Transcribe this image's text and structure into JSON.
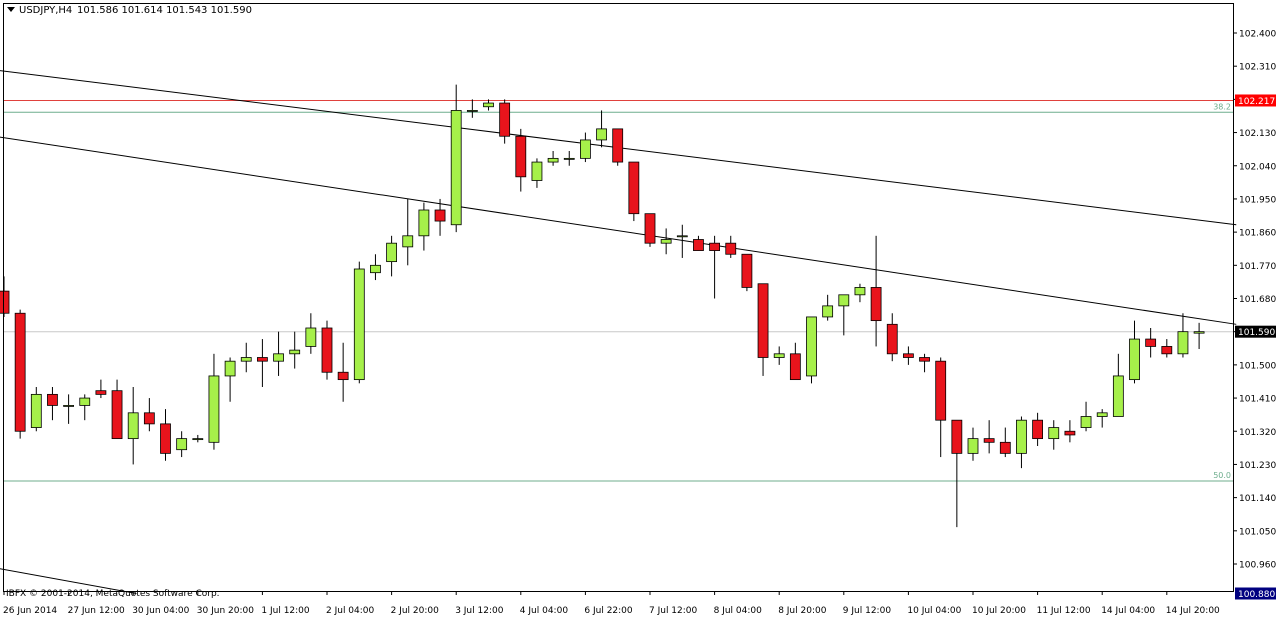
{
  "header": {
    "symbol_label": "USDJPY,H4",
    "ohlc_label": "101.586 101.614 101.543 101.590",
    "dropdown_icon": "triangle-down-icon"
  },
  "copyright": "IBFX © 2001-2014, MetaQuotes Software Corp.",
  "colors": {
    "background": "#ffffff",
    "frame": "#000000",
    "up_candle": "#a6f04a",
    "down_candle": "#e8141c",
    "wick": "#000000",
    "grid": "#c8c8c8",
    "resistance_line": "#e0413d",
    "fib_line": "#6fae8e",
    "price_tag_red": "#ff0000",
    "price_tag_current": "#000000",
    "price_tag_blue": "#000080"
  },
  "chart_data": {
    "type": "candlestick",
    "symbol": "USDJPY",
    "timeframe": "H4",
    "y_axis": {
      "ticks": [
        "102.400",
        "102.310",
        "102.220",
        "102.130",
        "102.040",
        "101.950",
        "101.860",
        "101.770",
        "101.680",
        "101.590",
        "101.500",
        "101.410",
        "101.320",
        "101.230",
        "101.140",
        "101.050",
        "100.960"
      ],
      "range": [
        100.88,
        102.46
      ]
    },
    "x_axis": {
      "labels": [
        "26 Jun 2014",
        "27 Jun 12:00",
        "30 Jun 04:00",
        "30 Jun 20:00",
        "1 Jul 12:00",
        "2 Jul 04:00",
        "2 Jul 20:00",
        "3 Jul 12:00",
        "4 Jul 04:00",
        "6 Jul 22:00",
        "7 Jul 12:00",
        "8 Jul 04:00",
        "8 Jul 20:00",
        "9 Jul 12:00",
        "10 Jul 04:00",
        "10 Jul 20:00",
        "11 Jul 12:00",
        "14 Jul 04:00",
        "14 Jul 20:00"
      ],
      "label_bars": [
        0,
        4,
        8,
        12,
        16,
        20,
        24,
        28,
        32,
        36,
        40,
        44,
        48,
        52,
        56,
        60,
        64,
        68,
        72
      ]
    },
    "candles": [
      {
        "o": 101.7,
        "h": 101.74,
        "l": 101.63,
        "c": 101.64
      },
      {
        "o": 101.64,
        "h": 101.65,
        "l": 101.3,
        "c": 101.32
      },
      {
        "o": 101.33,
        "h": 101.44,
        "l": 101.32,
        "c": 101.42
      },
      {
        "o": 101.42,
        "h": 101.44,
        "l": 101.35,
        "c": 101.39
      },
      {
        "o": 101.39,
        "h": 101.42,
        "l": 101.34,
        "c": 101.39
      },
      {
        "o": 101.39,
        "h": 101.42,
        "l": 101.35,
        "c": 101.41
      },
      {
        "o": 101.43,
        "h": 101.46,
        "l": 101.41,
        "c": 101.42
      },
      {
        "o": 101.43,
        "h": 101.46,
        "l": 101.3,
        "c": 101.3
      },
      {
        "o": 101.3,
        "h": 101.44,
        "l": 101.23,
        "c": 101.37
      },
      {
        "o": 101.37,
        "h": 101.41,
        "l": 101.32,
        "c": 101.34
      },
      {
        "o": 101.34,
        "h": 101.38,
        "l": 101.24,
        "c": 101.26
      },
      {
        "o": 101.27,
        "h": 101.32,
        "l": 101.25,
        "c": 101.3
      },
      {
        "o": 101.3,
        "h": 101.31,
        "l": 101.29,
        "c": 101.3
      },
      {
        "o": 101.29,
        "h": 101.53,
        "l": 101.27,
        "c": 101.47
      },
      {
        "o": 101.47,
        "h": 101.52,
        "l": 101.4,
        "c": 101.51
      },
      {
        "o": 101.51,
        "h": 101.56,
        "l": 101.48,
        "c": 101.52
      },
      {
        "o": 101.52,
        "h": 101.57,
        "l": 101.44,
        "c": 101.51
      },
      {
        "o": 101.51,
        "h": 101.59,
        "l": 101.47,
        "c": 101.53
      },
      {
        "o": 101.53,
        "h": 101.59,
        "l": 101.49,
        "c": 101.54
      },
      {
        "o": 101.55,
        "h": 101.64,
        "l": 101.53,
        "c": 101.6
      },
      {
        "o": 101.6,
        "h": 101.62,
        "l": 101.46,
        "c": 101.48
      },
      {
        "o": 101.48,
        "h": 101.56,
        "l": 101.4,
        "c": 101.46
      },
      {
        "o": 101.46,
        "h": 101.78,
        "l": 101.45,
        "c": 101.76
      },
      {
        "o": 101.75,
        "h": 101.8,
        "l": 101.73,
        "c": 101.77
      },
      {
        "o": 101.78,
        "h": 101.85,
        "l": 101.74,
        "c": 101.83
      },
      {
        "o": 101.82,
        "h": 101.95,
        "l": 101.77,
        "c": 101.85
      },
      {
        "o": 101.85,
        "h": 101.94,
        "l": 101.81,
        "c": 101.92
      },
      {
        "o": 101.92,
        "h": 101.95,
        "l": 101.85,
        "c": 101.89
      },
      {
        "o": 101.88,
        "h": 102.26,
        "l": 101.86,
        "c": 102.19
      },
      {
        "o": 102.19,
        "h": 102.22,
        "l": 102.17,
        "c": 102.19
      },
      {
        "o": 102.2,
        "h": 102.22,
        "l": 102.19,
        "c": 102.21
      },
      {
        "o": 102.21,
        "h": 102.22,
        "l": 102.1,
        "c": 102.12
      },
      {
        "o": 102.12,
        "h": 102.14,
        "l": 101.97,
        "c": 102.01
      },
      {
        "o": 102.0,
        "h": 102.06,
        "l": 101.98,
        "c": 102.05
      },
      {
        "o": 102.05,
        "h": 102.08,
        "l": 102.04,
        "c": 102.06
      },
      {
        "o": 102.06,
        "h": 102.08,
        "l": 102.04,
        "c": 102.06
      },
      {
        "o": 102.06,
        "h": 102.13,
        "l": 102.05,
        "c": 102.11
      },
      {
        "o": 102.11,
        "h": 102.19,
        "l": 102.09,
        "c": 102.14
      },
      {
        "o": 102.14,
        "h": 102.14,
        "l": 102.04,
        "c": 102.05
      },
      {
        "o": 102.05,
        "h": 102.05,
        "l": 101.89,
        "c": 101.91
      },
      {
        "o": 101.91,
        "h": 101.91,
        "l": 101.82,
        "c": 101.83
      },
      {
        "o": 101.83,
        "h": 101.87,
        "l": 101.8,
        "c": 101.84
      },
      {
        "o": 101.85,
        "h": 101.88,
        "l": 101.79,
        "c": 101.85
      },
      {
        "o": 101.84,
        "h": 101.85,
        "l": 101.81,
        "c": 101.81
      },
      {
        "o": 101.83,
        "h": 101.85,
        "l": 101.68,
        "c": 101.81
      },
      {
        "o": 101.83,
        "h": 101.85,
        "l": 101.79,
        "c": 101.8
      },
      {
        "o": 101.8,
        "h": 101.8,
        "l": 101.7,
        "c": 101.71
      },
      {
        "o": 101.72,
        "h": 101.72,
        "l": 101.47,
        "c": 101.52
      },
      {
        "o": 101.52,
        "h": 101.55,
        "l": 101.5,
        "c": 101.53
      },
      {
        "o": 101.53,
        "h": 101.56,
        "l": 101.46,
        "c": 101.46
      },
      {
        "o": 101.47,
        "h": 101.63,
        "l": 101.45,
        "c": 101.63
      },
      {
        "o": 101.63,
        "h": 101.69,
        "l": 101.62,
        "c": 101.66
      },
      {
        "o": 101.66,
        "h": 101.69,
        "l": 101.58,
        "c": 101.69
      },
      {
        "o": 101.69,
        "h": 101.72,
        "l": 101.67,
        "c": 101.71
      },
      {
        "o": 101.71,
        "h": 101.85,
        "l": 101.55,
        "c": 101.62
      },
      {
        "o": 101.61,
        "h": 101.64,
        "l": 101.51,
        "c": 101.53
      },
      {
        "o": 101.53,
        "h": 101.55,
        "l": 101.5,
        "c": 101.52
      },
      {
        "o": 101.52,
        "h": 101.53,
        "l": 101.48,
        "c": 101.51
      },
      {
        "o": 101.51,
        "h": 101.52,
        "l": 101.25,
        "c": 101.35
      },
      {
        "o": 101.35,
        "h": 101.35,
        "l": 101.06,
        "c": 101.26
      },
      {
        "o": 101.26,
        "h": 101.33,
        "l": 101.24,
        "c": 101.3
      },
      {
        "o": 101.3,
        "h": 101.35,
        "l": 101.26,
        "c": 101.29
      },
      {
        "o": 101.29,
        "h": 101.33,
        "l": 101.25,
        "c": 101.26
      },
      {
        "o": 101.26,
        "h": 101.36,
        "l": 101.22,
        "c": 101.35
      },
      {
        "o": 101.35,
        "h": 101.37,
        "l": 101.28,
        "c": 101.3
      },
      {
        "o": 101.3,
        "h": 101.35,
        "l": 101.27,
        "c": 101.33
      },
      {
        "o": 101.32,
        "h": 101.35,
        "l": 101.29,
        "c": 101.31
      },
      {
        "o": 101.33,
        "h": 101.4,
        "l": 101.32,
        "c": 101.36
      },
      {
        "o": 101.36,
        "h": 101.38,
        "l": 101.33,
        "c": 101.37
      },
      {
        "o": 101.36,
        "h": 101.53,
        "l": 101.36,
        "c": 101.47
      },
      {
        "o": 101.46,
        "h": 101.62,
        "l": 101.45,
        "c": 101.57
      },
      {
        "o": 101.57,
        "h": 101.6,
        "l": 101.52,
        "c": 101.55
      },
      {
        "o": 101.55,
        "h": 101.57,
        "l": 101.52,
        "c": 101.53
      },
      {
        "o": 101.53,
        "h": 101.64,
        "l": 101.52,
        "c": 101.59
      },
      {
        "o": 101.586,
        "h": 101.614,
        "l": 101.543,
        "c": 101.59
      }
    ],
    "horizontal_lines": [
      {
        "name": "resistance",
        "price": 102.217,
        "color": "#e0413d",
        "tag": "102.217"
      },
      {
        "name": "fib-38",
        "price": 102.185,
        "color": "#6fae8e",
        "label": "38.2"
      },
      {
        "name": "fib-50",
        "price": 101.185,
        "color": "#6fae8e",
        "label": "50.0"
      },
      {
        "name": "current-price",
        "price": 101.59,
        "color": "#c8c8c8",
        "tag": "101.590"
      },
      {
        "name": "bottom-marker",
        "price": 100.88,
        "tag": "100.880"
      }
    ],
    "trend_lines": [
      {
        "name": "upper-channel",
        "from": {
          "bar": -0.6,
          "price": 102.3
        },
        "to": {
          "bar": 76.3,
          "price": 101.88
        }
      },
      {
        "name": "lower-channel",
        "from": {
          "bar": -0.6,
          "price": 102.12
        },
        "to": {
          "bar": 76.3,
          "price": 101.61
        }
      },
      {
        "name": "lower-trend",
        "from": {
          "bar": -0.6,
          "price": 100.95
        },
        "to": {
          "bar": 8.2,
          "price": 100.88
        }
      }
    ]
  }
}
